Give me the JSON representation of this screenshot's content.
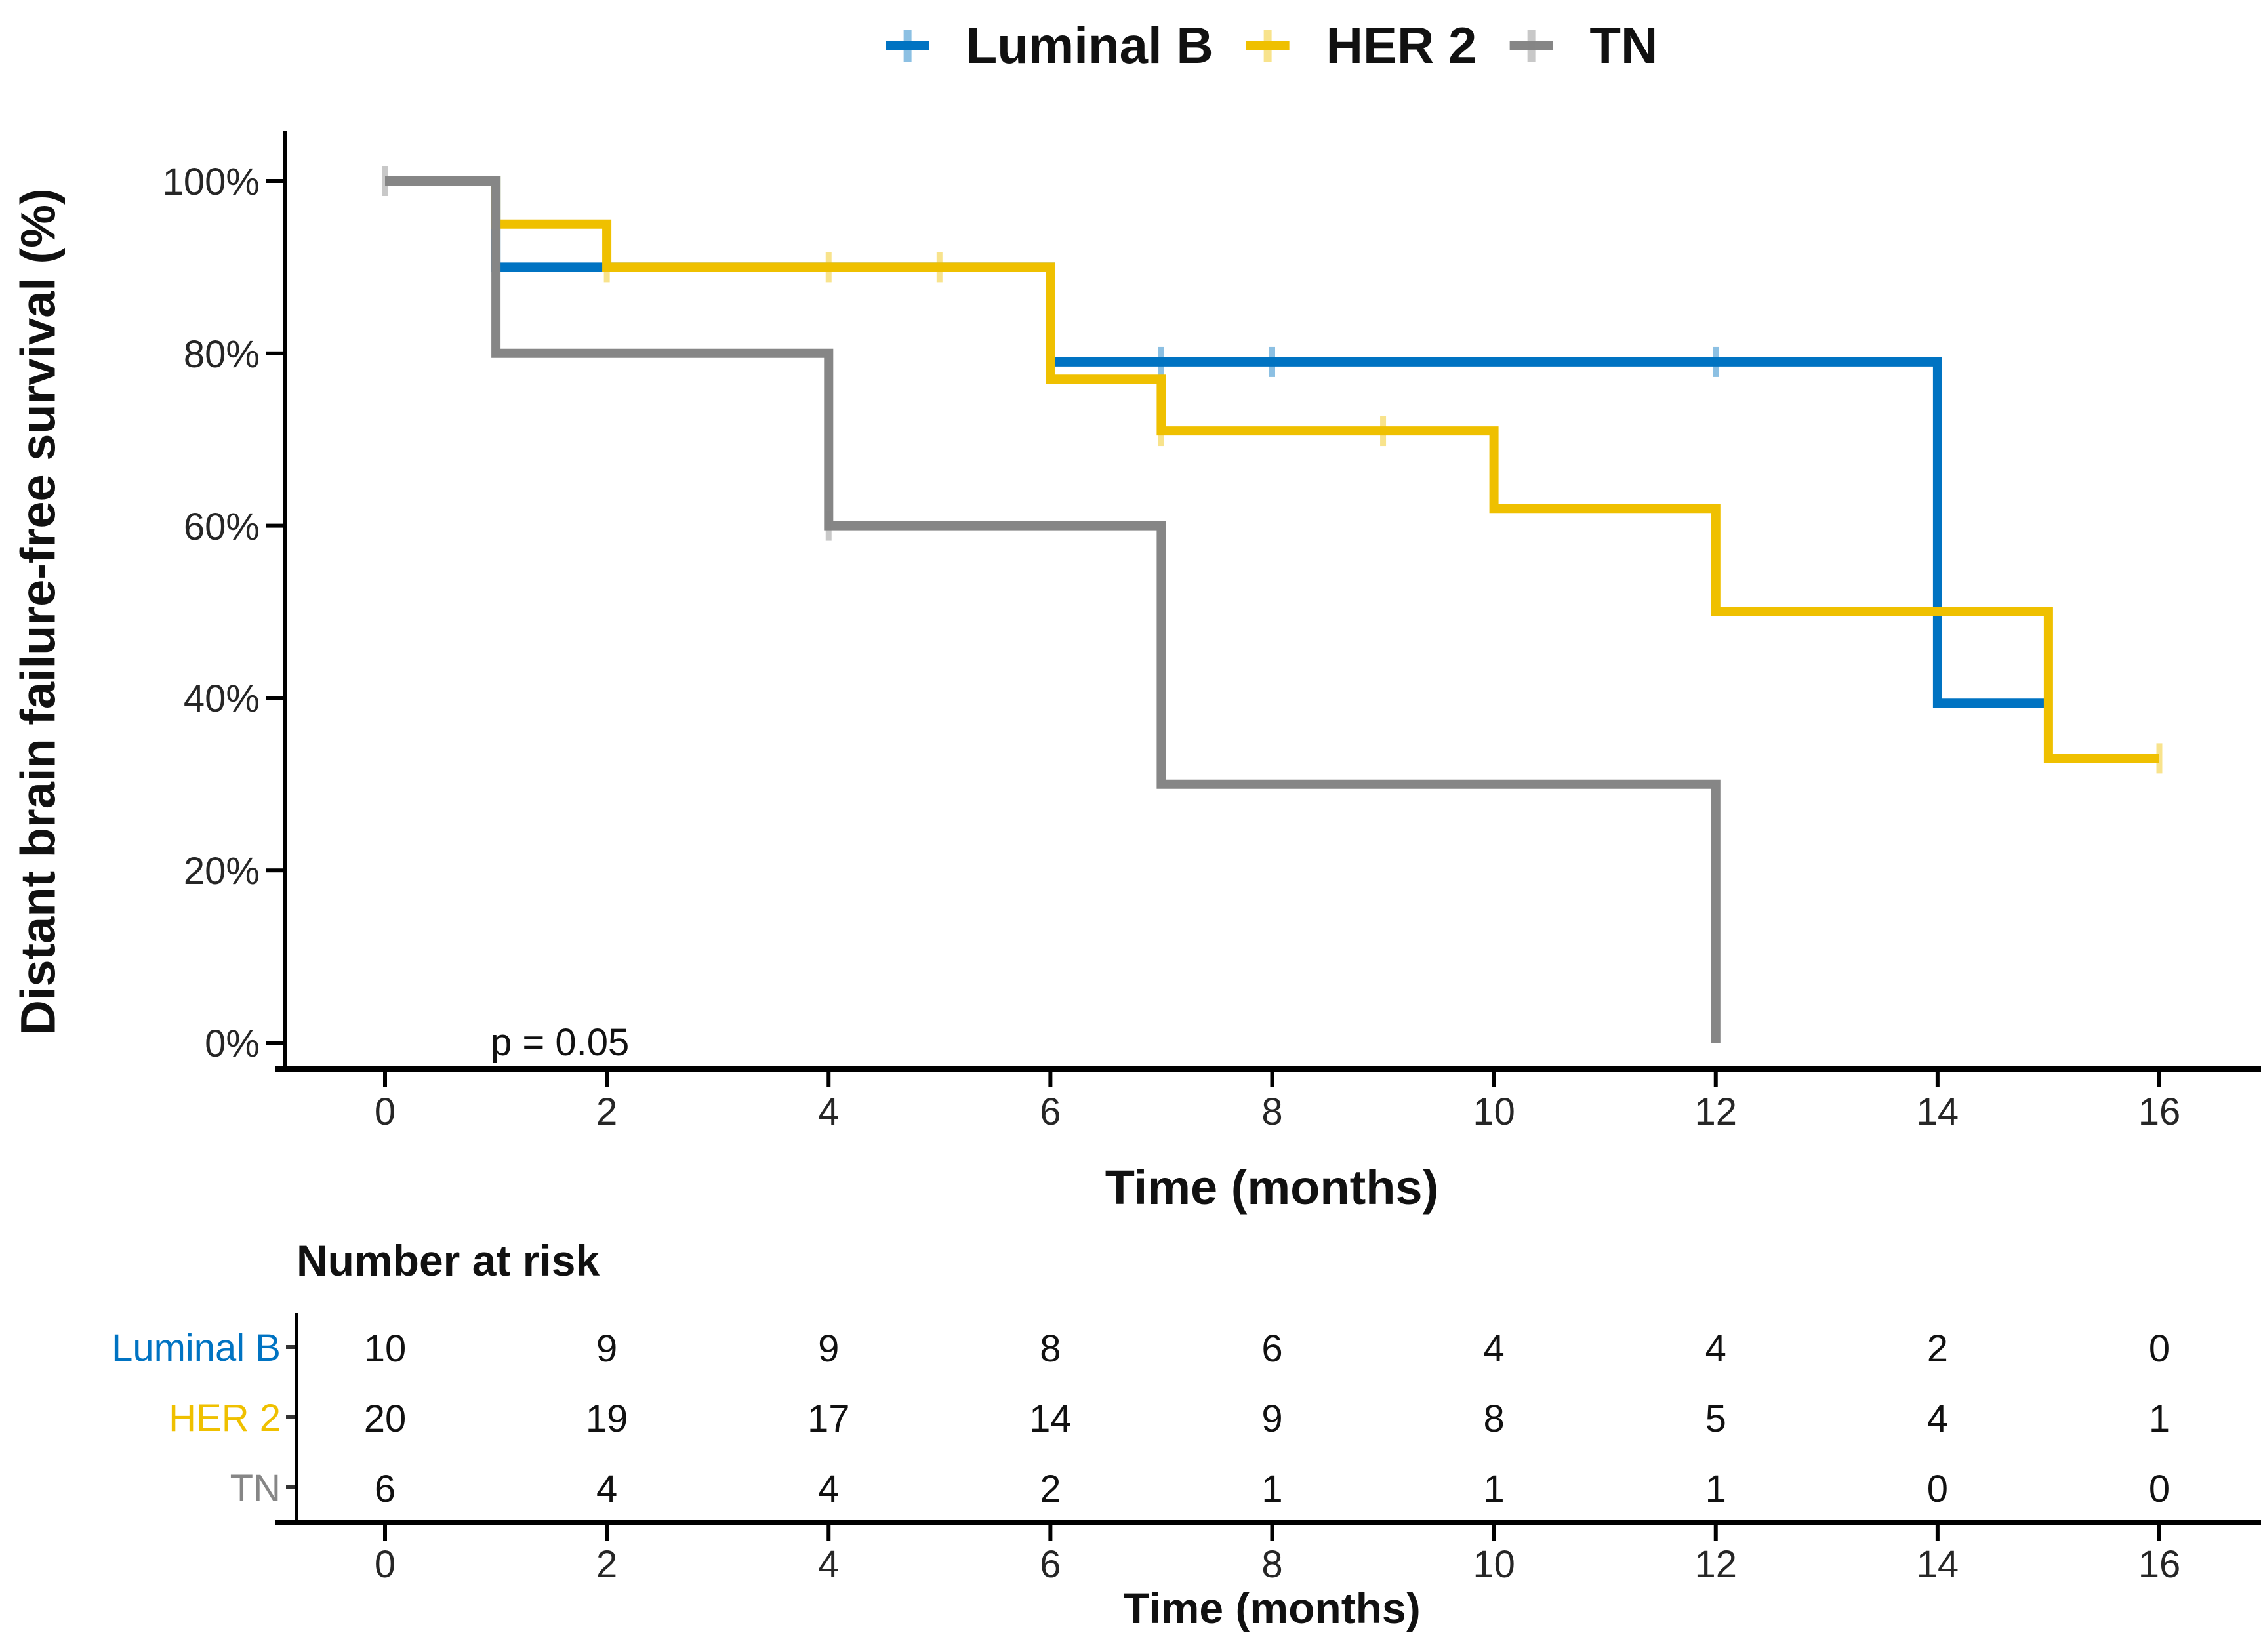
{
  "figure": {
    "background": "#ffffff",
    "legend_items": [
      "Luminal B",
      "HER 2",
      "TN"
    ]
  },
  "chart_data": {
    "type": "line",
    "subtype": "kaplan-meier-step-survival",
    "title": "",
    "xlabel": "Time (months)",
    "ylabel": "Distant brain failure-free survival (%)",
    "pvalue_text": "p = 0.05",
    "legend_position": "top",
    "grid": false,
    "xlim": [
      0,
      16.9
    ],
    "ylim": [
      0,
      100
    ],
    "x_ticks": [
      0,
      2,
      4,
      6,
      8,
      10,
      12,
      14,
      16
    ],
    "y_ticks": [
      0,
      20,
      40,
      60,
      80,
      100
    ],
    "y_tick_suffix": "%",
    "series": [
      {
        "name": "Luminal B",
        "color": "#0073C2",
        "steps": [
          [
            0,
            100
          ],
          [
            1,
            100
          ],
          [
            1,
            90
          ],
          [
            6,
            90
          ],
          [
            6,
            79
          ],
          [
            14,
            79
          ],
          [
            14,
            39.4
          ],
          [
            15,
            39.4
          ]
        ],
        "censor_marks": [
          [
            7,
            79
          ],
          [
            8,
            79
          ],
          [
            12,
            79
          ]
        ]
      },
      {
        "name": "HER 2",
        "color": "#EFC000",
        "steps": [
          [
            0,
            100
          ],
          [
            1,
            100
          ],
          [
            1,
            95
          ],
          [
            2,
            95
          ],
          [
            2,
            90
          ],
          [
            6,
            90
          ],
          [
            6,
            77
          ],
          [
            7,
            77
          ],
          [
            7,
            71
          ],
          [
            10,
            71
          ],
          [
            10,
            62
          ],
          [
            12,
            62
          ],
          [
            12,
            50
          ],
          [
            15,
            50
          ],
          [
            15,
            33
          ],
          [
            16,
            33
          ]
        ],
        "censor_marks": [
          [
            2,
            90
          ],
          [
            4,
            90
          ],
          [
            5,
            90
          ],
          [
            7,
            71
          ],
          [
            9,
            71
          ],
          [
            16,
            33
          ]
        ]
      },
      {
        "name": "TN",
        "color": "#868686",
        "steps": [
          [
            0,
            100
          ],
          [
            1,
            100
          ],
          [
            1,
            80
          ],
          [
            4,
            80
          ],
          [
            4,
            60
          ],
          [
            7,
            60
          ],
          [
            7,
            30
          ],
          [
            12,
            30
          ],
          [
            12,
            0
          ]
        ],
        "censor_marks": [
          [
            0,
            100
          ],
          [
            4,
            60
          ]
        ]
      }
    ],
    "risk_table": {
      "title": "Number at risk",
      "xlabel": "Time (months)",
      "times": [
        0,
        2,
        4,
        6,
        8,
        10,
        12,
        14,
        16
      ],
      "rows": [
        {
          "name": "Luminal B",
          "color": "#0073C2",
          "counts": [
            10,
            9,
            9,
            8,
            6,
            4,
            4,
            2,
            0
          ]
        },
        {
          "name": "HER 2",
          "color": "#EFC000",
          "counts": [
            20,
            19,
            17,
            14,
            9,
            8,
            5,
            4,
            1
          ]
        },
        {
          "name": "TN",
          "color": "#868686",
          "counts": [
            6,
            4,
            4,
            2,
            1,
            1,
            1,
            0,
            0
          ]
        }
      ]
    }
  }
}
